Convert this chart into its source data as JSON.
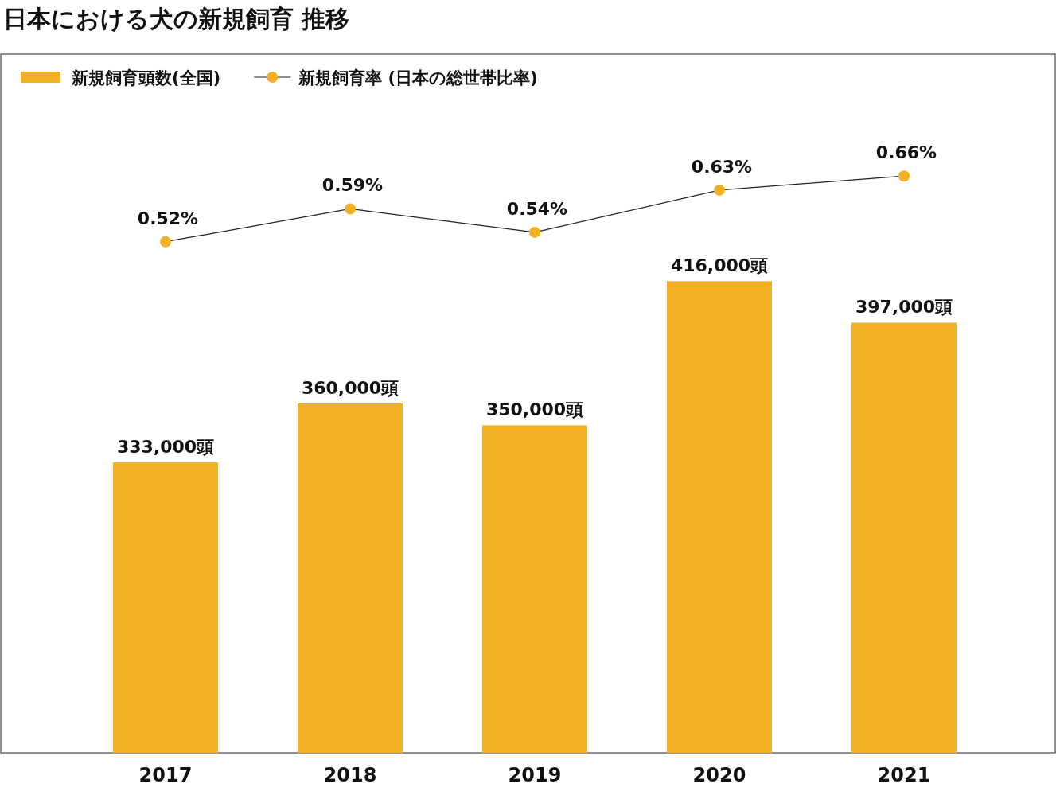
{
  "chart_data": {
    "type": "bar",
    "title": "日本における犬の新規飼育 推移",
    "categories": [
      "2017",
      "2018",
      "2019",
      "2020",
      "2021"
    ],
    "series": [
      {
        "name": "新規飼育頭数(全国)",
        "color": "#f2b124",
        "values": [
          333000,
          360000,
          350000,
          416000,
          397000
        ],
        "value_labels": [
          "333,000頭",
          "360,000頭",
          "350,000頭",
          "416,000頭",
          "397,000頭"
        ]
      },
      {
        "name": "新規飼育率 (日本の総世帯比率)",
        "type": "line",
        "axis": "y2",
        "color": "#f2b124",
        "marker": "circle",
        "values": [
          0.52,
          0.59,
          0.54,
          0.63,
          0.66
        ],
        "value_labels": [
          "0.52%",
          "0.59%",
          "0.54%",
          "0.63%",
          "0.66%"
        ]
      }
    ],
    "ylim": [
      200000,
      520000
    ],
    "y2lim": [
      -0.57,
      0.92
    ],
    "tick_labels": "x",
    "legend": "top left"
  }
}
